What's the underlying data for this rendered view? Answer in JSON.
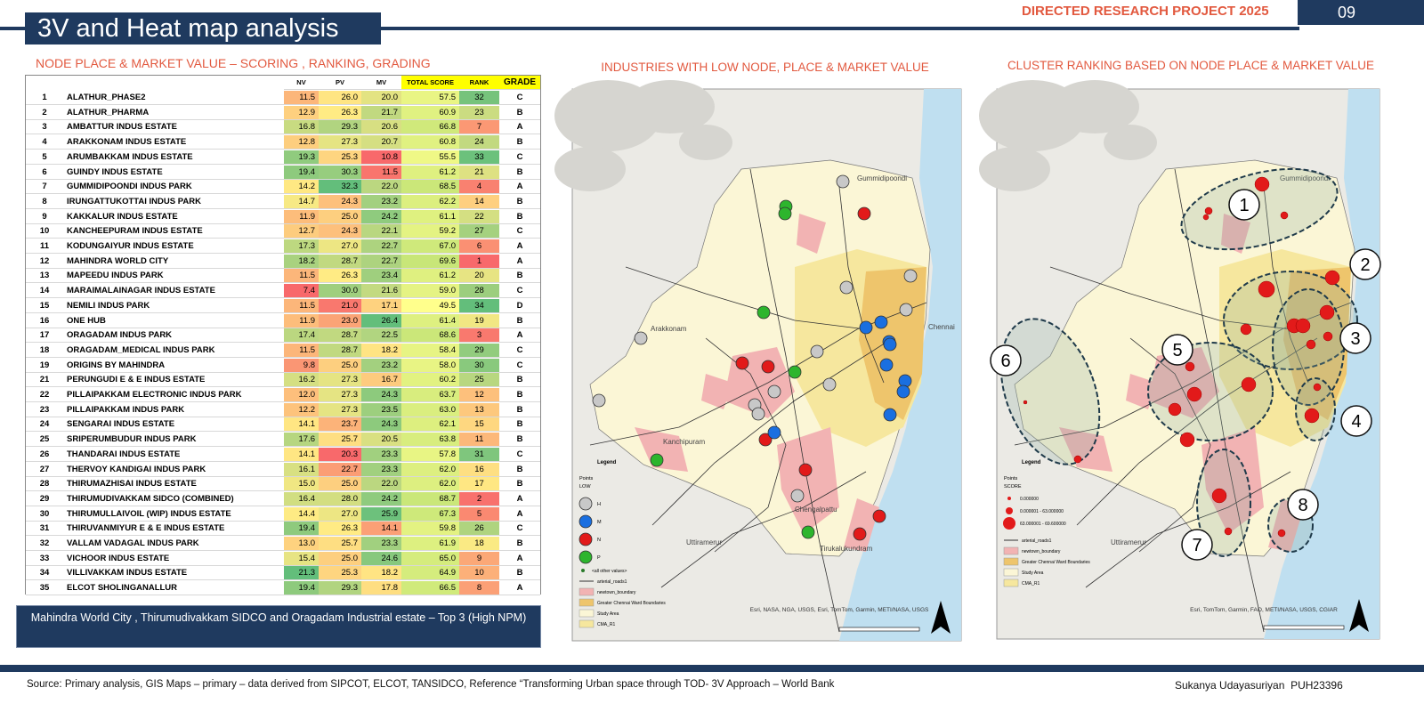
{
  "header": {
    "title": "3V and Heat map analysis",
    "project": "DIRECTED RESEARCH PROJECT 2025",
    "page": "09"
  },
  "table": {
    "heading": "NODE PLACE & MARKET VALUE – SCORING , RANKING, GRADING",
    "columns": [
      "NV",
      "PV",
      "MV",
      "TOTAL SCORE",
      "RANK",
      "GRADE"
    ],
    "rows": [
      [
        "1",
        "ALATHUR_PHASE2",
        "11.5",
        "26.0",
        "20.0",
        "57.5",
        "32",
        "C"
      ],
      [
        "2",
        "ALATHUR_PHARMA",
        "12.9",
        "26.3",
        "21.7",
        "60.9",
        "23",
        "B"
      ],
      [
        "3",
        "AMBATTUR INDUS ESTATE",
        "16.8",
        "29.3",
        "20.6",
        "66.8",
        "7",
        "A"
      ],
      [
        "4",
        "ARAKKONAM INDUS ESTATE",
        "12.8",
        "27.3",
        "20.7",
        "60.8",
        "24",
        "B"
      ],
      [
        "5",
        "ARUMBAKKAM INDUS ESTATE",
        "19.3",
        "25.3",
        "10.8",
        "55.5",
        "33",
        "C"
      ],
      [
        "6",
        "GUINDY INDUS ESTATE",
        "19.4",
        "30.3",
        "11.5",
        "61.2",
        "21",
        "B"
      ],
      [
        "7",
        "GUMMIDIPOONDI INDUS PARK",
        "14.2",
        "32.3",
        "22.0",
        "68.5",
        "4",
        "A"
      ],
      [
        "8",
        "IRUNGATTUKOTTAI INDUS PARK",
        "14.7",
        "24.3",
        "23.2",
        "62.2",
        "14",
        "B"
      ],
      [
        "9",
        "KAKKALUR INDUS ESTATE",
        "11.9",
        "25.0",
        "24.2",
        "61.1",
        "22",
        "B"
      ],
      [
        "10",
        "KANCHEEPURAM INDUS ESTATE",
        "12.7",
        "24.3",
        "22.1",
        "59.2",
        "27",
        "C"
      ],
      [
        "11",
        "KODUNGAIYUR INDUS ESTATE",
        "17.3",
        "27.0",
        "22.7",
        "67.0",
        "6",
        "A"
      ],
      [
        "12",
        "MAHINDRA WORLD CITY",
        "18.2",
        "28.7",
        "22.7",
        "69.6",
        "1",
        "A"
      ],
      [
        "13",
        "MAPEEDU INDUS PARK",
        "11.5",
        "26.3",
        "23.4",
        "61.2",
        "20",
        "B"
      ],
      [
        "14",
        "MARAIMALAINAGAR INDUS ESTATE",
        "7.4",
        "30.0",
        "21.6",
        "59.0",
        "28",
        "C"
      ],
      [
        "15",
        "NEMILI INDUS PARK",
        "11.5",
        "21.0",
        "17.1",
        "49.5",
        "34",
        "D"
      ],
      [
        "16",
        "ONE HUB",
        "11.9",
        "23.0",
        "26.4",
        "61.4",
        "19",
        "B"
      ],
      [
        "17",
        "ORAGADAM INDUS PARK",
        "17.4",
        "28.7",
        "22.5",
        "68.6",
        "3",
        "A"
      ],
      [
        "18",
        "ORAGADAM_MEDICAL INDUS PARK",
        "11.5",
        "28.7",
        "18.2",
        "58.4",
        "29",
        "C"
      ],
      [
        "19",
        "ORIGINS BY MAHINDRA",
        "9.8",
        "25.0",
        "23.2",
        "58.0",
        "30",
        "C"
      ],
      [
        "21",
        "PERUNGUDI E & E INDUS ESTATE",
        "16.2",
        "27.3",
        "16.7",
        "60.2",
        "25",
        "B"
      ],
      [
        "22",
        "PILLAIPAKKAM ELECTRONIC INDUS PARK",
        "12.0",
        "27.3",
        "24.3",
        "63.7",
        "12",
        "B"
      ],
      [
        "23",
        "PILLAIPAKKAM INDUS PARK",
        "12.2",
        "27.3",
        "23.5",
        "63.0",
        "13",
        "B"
      ],
      [
        "24",
        "SENGARAI INDUS ESTATE",
        "14.1",
        "23.7",
        "24.3",
        "62.1",
        "15",
        "B"
      ],
      [
        "25",
        "SRIPERUMBUDUR INDUS PARK",
        "17.6",
        "25.7",
        "20.5",
        "63.8",
        "11",
        "B"
      ],
      [
        "26",
        "THANDARAI INDUS ESTATE",
        "14.1",
        "20.3",
        "23.3",
        "57.8",
        "31",
        "C"
      ],
      [
        "27",
        "THERVOY KANDIGAI INDUS PARK",
        "16.1",
        "22.7",
        "23.3",
        "62.0",
        "16",
        "B"
      ],
      [
        "28",
        "THIRUMAZHISAI INDUS ESTATE",
        "15.0",
        "25.0",
        "22.0",
        "62.0",
        "17",
        "B"
      ],
      [
        "29",
        "THIRUMUDIVAKKAM SIDCO (COMBINED)",
        "16.4",
        "28.0",
        "24.2",
        "68.7",
        "2",
        "A"
      ],
      [
        "30",
        "THIRUMULLAIVOIL (WIP) INDUS ESTATE",
        "14.4",
        "27.0",
        "25.9",
        "67.3",
        "5",
        "A"
      ],
      [
        "31",
        "THIRUVANMIYUR E & E INDUS ESTATE",
        "19.4",
        "26.3",
        "14.1",
        "59.8",
        "26",
        "C"
      ],
      [
        "32",
        "VALLAM VADAGAL INDUS PARK",
        "13.0",
        "25.7",
        "23.3",
        "61.9",
        "18",
        "B"
      ],
      [
        "33",
        "VICHOOR INDUS ESTATE",
        "15.4",
        "25.0",
        "24.6",
        "65.0",
        "9",
        "A"
      ],
      [
        "34",
        "VILLIVAKKAM INDUS ESTATE",
        "21.3",
        "25.3",
        "18.2",
        "64.9",
        "10",
        "B"
      ],
      [
        "35",
        "ELCOT SHOLINGANALLUR",
        "19.4",
        "29.3",
        "17.8",
        "66.5",
        "8",
        "A"
      ]
    ]
  },
  "callout": "Mahindra World City , Thirumudivakkam SIDCO and Oragadam Industrial estate – Top 3 (High NPM)",
  "map_low": {
    "title": "INDUSTRIES WITH LOW NODE, PLACE & MARKET VALUE",
    "places": [
      "Gummidipoondi",
      "Arakkonam",
      "Chennai",
      "Kanchipuram",
      "Chengalpattu",
      "Tirukalukundram",
      "Uttiramerur"
    ],
    "legend": {
      "title": "Legend",
      "points": "Points",
      "field": "LOW",
      "classes": [
        "H",
        "M",
        "N",
        "P"
      ],
      "other": "<all other values>",
      "layers": [
        "arterial_roads1",
        "newtown_boundary",
        "Greater Chennai Ward Boundaries",
        "Study Area",
        "CMA_R1"
      ]
    },
    "credit": "Esri, NASA, NGA, USGS, Esri, TomTom, Garmin, METI/NASA, USGS",
    "north": "N"
  },
  "map_cluster": {
    "title": "CLUSTER RANKING BASED ON NODE PLACE & MARKET VALUE",
    "clusters": [
      "1",
      "2",
      "3",
      "4",
      "5",
      "6",
      "7",
      "8"
    ],
    "places": [
      "Gummidipoondi",
      "Uttiramerur"
    ],
    "legend": {
      "title": "Legend",
      "points": "Points",
      "field": "SCORE",
      "classes": [
        "0.000000",
        "0.000001 - 63.000000",
        "63.000001 - 69.600000"
      ],
      "layers": [
        "arterial_roads1",
        "newtown_boundary",
        "Greater Chennai Ward Boundaries",
        "Study Area",
        "CMA_R1"
      ]
    },
    "credit": "Esri, TomTom, Garmin, FAO, METI/NASA, USGS, CGIAR",
    "north": "N"
  },
  "footer": {
    "source": "Source: Primary analysis, GIS Maps – primary – data derived from SIPCOT, ELCOT, TANSIDCO, Reference “Transforming Urban space through TOD- 3V Approach – World Bank",
    "author": "Sukanya Udayasuriyan  PUH23396"
  }
}
